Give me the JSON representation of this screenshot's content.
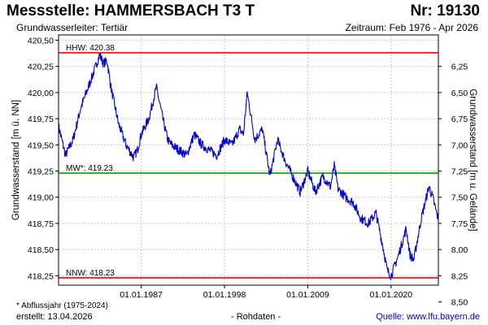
{
  "header": {
    "title": "Messstelle: HAMMERSBACH T3 T",
    "station_no": "Nr: 19130",
    "aquifer": "Grundwasserleiter: Tertiär",
    "period": "Zeitraum: Feb 1976 - Apr 2026"
  },
  "footer": {
    "footnote": "* Abflussjahr (1975-2024)",
    "created": "erstellt:  13.04.2026",
    "rawdata": "- Rohdaten -",
    "source": "Quelle: www.lfu.bayern.de"
  },
  "colors": {
    "series": "#0000dd",
    "extreme_lines": "#ff0000",
    "mean_line": "#00a000",
    "grid": "#c8c8c8"
  },
  "chart_data": {
    "type": "line",
    "ylabel_left": "Grundwasserstand [m ü. NN]",
    "ylabel_right": "Grundwasserstand [m u. Gelände]",
    "ylim": [
      418.16,
      420.55
    ],
    "xlim": [
      "1976-02",
      "2026-04"
    ],
    "yticks_left": [
      "420,50",
      "420,25",
      "420,00",
      "419,75",
      "419,50",
      "419,25",
      "419,00",
      "418,75",
      "418,50",
      "418,25"
    ],
    "yticks_left_values": [
      420.5,
      420.25,
      420.0,
      419.75,
      419.5,
      419.25,
      419.0,
      418.75,
      418.5,
      418.25
    ],
    "yticks_right": [
      "6,25",
      "6,50",
      "6,75",
      "7,00",
      "7,25",
      "7,50",
      "7,75",
      "8,00",
      "8,25",
      "8,50"
    ],
    "yticks_right_values": [
      6.25,
      6.5,
      6.75,
      7.0,
      7.25,
      7.5,
      7.75,
      8.0,
      8.25,
      8.5
    ],
    "xticks": [
      "01.01.1987",
      "01.01.1998",
      "01.01.2009",
      "01.01.2020"
    ],
    "xtick_dates": [
      "1987-01-01",
      "1998-01-01",
      "2009-01-01",
      "2020-01-01"
    ],
    "reference_lines": [
      {
        "label": "HHW: 420.38",
        "value": 420.38,
        "kind": "extreme"
      },
      {
        "label": "MW*: 419.23",
        "value": 419.23,
        "kind": "mean"
      },
      {
        "label": "NNW: 418.23",
        "value": 418.23,
        "kind": "extreme"
      }
    ],
    "grid": true,
    "series": [
      {
        "x": [
          "1976-02",
          "1977-01",
          "1978-01",
          "1979-01",
          "1980-01",
          "1981-01",
          "1981-07",
          "1982-01",
          "1982-07",
          "1983-01",
          "1984-01",
          "1985-01",
          "1986-01",
          "1986-07",
          "1987-01",
          "1988-01",
          "1989-01",
          "1990-01",
          "1990-07",
          "1991-01",
          "1992-01",
          "1993-01",
          "1994-01",
          "1995-01",
          "1996-01",
          "1997-01",
          "1998-01",
          "1999-01",
          "2000-01",
          "2000-07",
          "2001-01",
          "2002-01",
          "2003-01",
          "2004-01",
          "2005-01",
          "2006-01",
          "2007-01",
          "2008-01",
          "2009-01",
          "2010-01",
          "2011-01",
          "2012-01",
          "2012-07",
          "2013-01",
          "2014-01",
          "2015-01",
          "2016-01",
          "2017-01",
          "2018-01",
          "2019-01",
          "2019-07",
          "2020-01",
          "2021-01",
          "2022-01",
          "2022-07",
          "2023-01",
          "2024-01",
          "2025-01",
          "2025-07",
          "2026-04"
        ],
        "y": [
          419.68,
          419.4,
          419.55,
          419.85,
          420.05,
          420.25,
          420.36,
          420.28,
          420.3,
          420.05,
          419.7,
          419.5,
          419.38,
          419.45,
          419.6,
          419.75,
          420.05,
          419.7,
          419.55,
          419.5,
          419.45,
          419.4,
          419.6,
          419.5,
          419.45,
          419.4,
          419.55,
          419.5,
          419.65,
          419.6,
          420.0,
          419.55,
          419.65,
          419.2,
          419.55,
          419.35,
          419.2,
          419.05,
          419.25,
          419.05,
          419.2,
          419.1,
          419.3,
          419.08,
          419.0,
          418.95,
          418.8,
          418.75,
          418.85,
          418.5,
          418.3,
          418.25,
          418.45,
          418.7,
          418.45,
          418.4,
          418.8,
          419.1,
          419.0,
          418.78
        ]
      }
    ]
  }
}
